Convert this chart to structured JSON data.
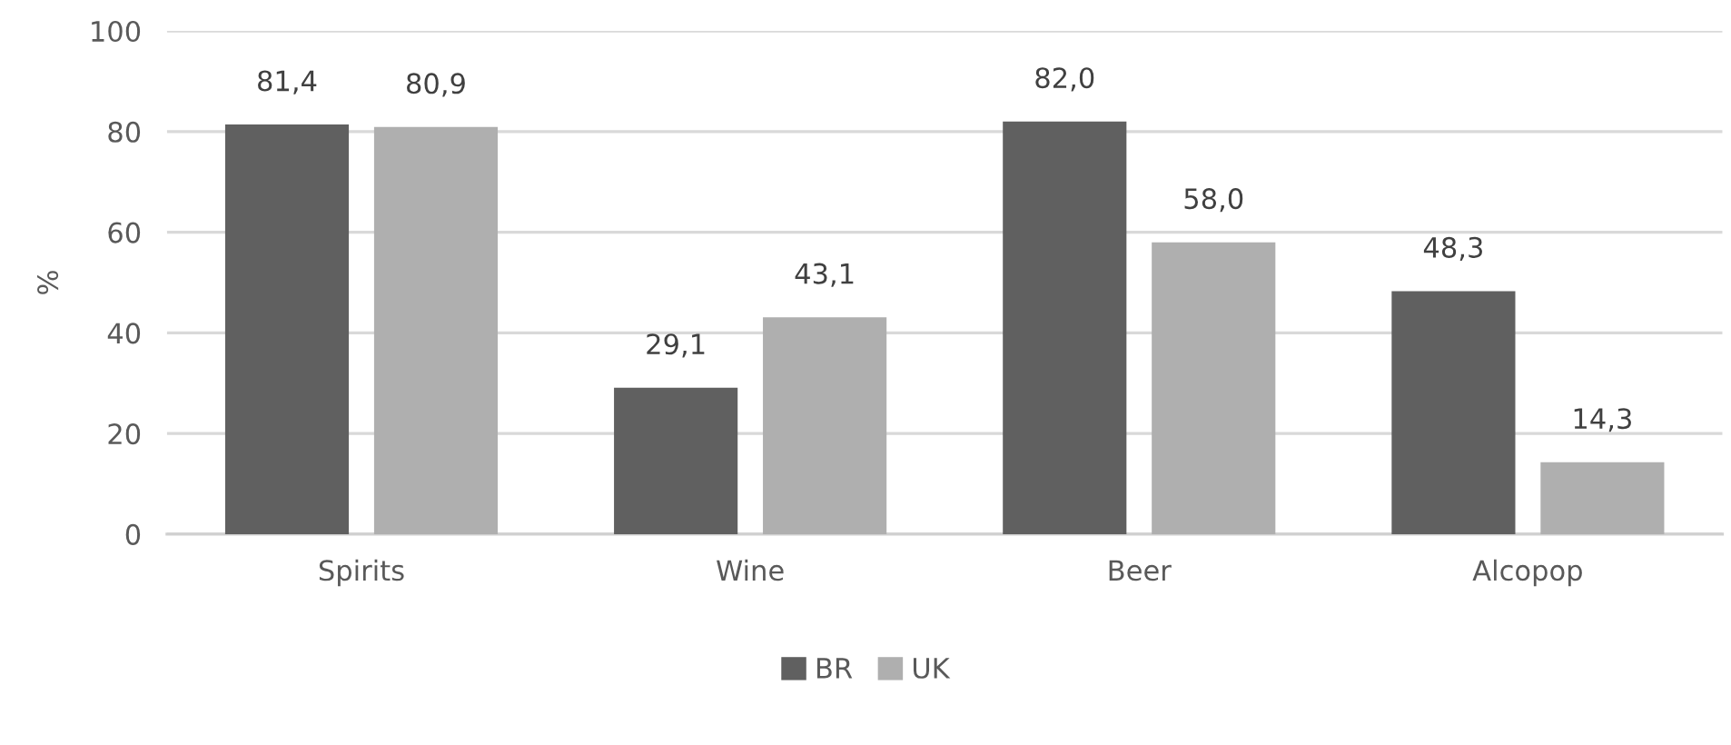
{
  "chart_data": {
    "type": "bar",
    "ylabel": "%",
    "categories": [
      "Spirits",
      "Wine",
      "Beer",
      "Alcopop"
    ],
    "series": [
      {
        "name": "BR",
        "color": "#606060",
        "values": [
          81.4,
          29.1,
          82.0,
          48.3
        ],
        "value_labels": [
          "81,4",
          "29,1",
          "82,0",
          "48,3"
        ]
      },
      {
        "name": "UK",
        "color": "#afafaf",
        "values": [
          80.9,
          43.1,
          58.0,
          14.3
        ],
        "value_labels": [
          "80,9",
          "43,1",
          "58,0",
          "14,3"
        ]
      }
    ],
    "ylim": [
      0,
      100
    ],
    "yticks": [
      0,
      20,
      40,
      60,
      80,
      100
    ],
    "grid": "y",
    "legend": "bottom"
  }
}
